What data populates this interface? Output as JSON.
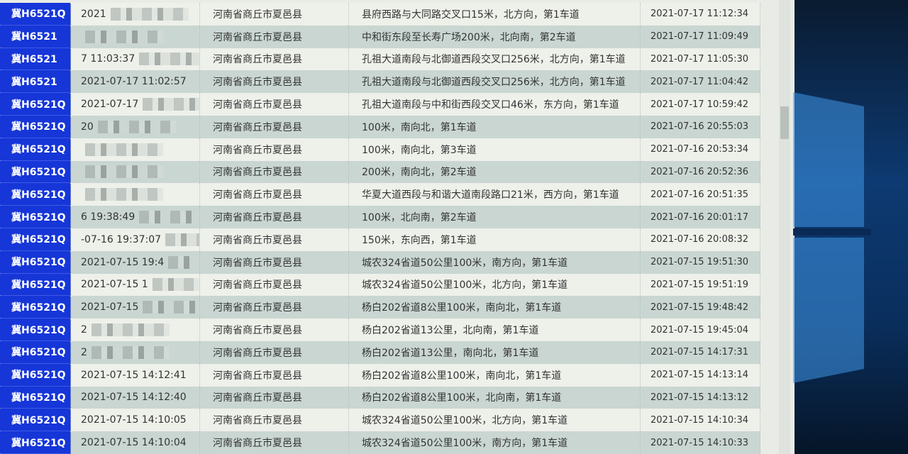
{
  "table": {
    "rows": [
      {
        "plate": "冀H6521Q",
        "time": "2021",
        "region": "河南省商丘市夏邑县",
        "location": "县府西路与大同路交叉口15米，北方向，第1车道",
        "time2": "2021-07-17 11:12:34"
      },
      {
        "plate": "冀H6521",
        "time": "",
        "region": "河南省商丘市夏邑县",
        "location": "中和街东段至长寿广场200米，北向南，第2车道",
        "time2": "2021-07-17 11:09:49"
      },
      {
        "plate": "冀H6521",
        "time": "7 11:03:37",
        "region": "河南省商丘市夏邑县",
        "location": "孔祖大道南段与北御道西段交叉口256米，北方向，第1车道",
        "time2": "2021-07-17 11:05:30"
      },
      {
        "plate": "冀H6521",
        "time": "2021-07-17 11:02:57",
        "region": "河南省商丘市夏邑县",
        "location": "孔祖大道南段与北御道西段交叉口256米，北方向，第1车道",
        "time2": "2021-07-17 11:04:42"
      },
      {
        "plate": "冀H6521Q",
        "time": "2021-07-17",
        "region": "河南省商丘市夏邑县",
        "location": "孔祖大道南段与中和街西段交叉口46米，东方向，第1车道",
        "time2": "2021-07-17 10:59:42"
      },
      {
        "plate": "冀H6521Q",
        "time": "20",
        "region": "河南省商丘市夏邑县",
        "location": "100米，南向北，第1车道",
        "time2": "2021-07-16 20:55:03"
      },
      {
        "plate": "冀H6521Q",
        "time": "",
        "region": "河南省商丘市夏邑县",
        "location": "100米，南向北，第3车道",
        "time2": "2021-07-16 20:53:34"
      },
      {
        "plate": "冀H6521Q",
        "time": "",
        "region": "河南省商丘市夏邑县",
        "location": "200米，南向北，第2车道",
        "time2": "2021-07-16 20:52:36"
      },
      {
        "plate": "冀H6521Q",
        "time": "",
        "region": "河南省商丘市夏邑县",
        "location": "华夏大道西段与和谐大道南段路口21米，西方向，第1车道",
        "time2": "2021-07-16 20:51:35"
      },
      {
        "plate": "冀H6521Q",
        "time": "6 19:38:49",
        "region": "河南省商丘市夏邑县",
        "location": "100米，北向南，第2车道",
        "time2": "2021-07-16 20:01:17"
      },
      {
        "plate": "冀H6521Q",
        "time": "-07-16 19:37:07",
        "region": "河南省商丘市夏邑县",
        "location": "150米，东向西，第1车道",
        "time2": "2021-07-16 20:08:32"
      },
      {
        "plate": "冀H6521Q",
        "time": "2021-07-15 19:4",
        "region": "河南省商丘市夏邑县",
        "location": "城农324省道50公里100米，南方向，第1车道",
        "time2": "2021-07-15 19:51:30"
      },
      {
        "plate": "冀H6521Q",
        "time": "2021-07-15 1",
        "region": "河南省商丘市夏邑县",
        "location": "城农324省道50公里100米，北方向，第1车道",
        "time2": "2021-07-15 19:51:19"
      },
      {
        "plate": "冀H6521Q",
        "time": "2021-07-15",
        "region": "河南省商丘市夏邑县",
        "location": "杨白202省道8公里100米，南向北，第1车道",
        "time2": "2021-07-15 19:48:42"
      },
      {
        "plate": "冀H6521Q",
        "time": "2",
        "region": "河南省商丘市夏邑县",
        "location": "杨白202省道13公里，北向南，第1车道",
        "time2": "2021-07-15 19:45:04"
      },
      {
        "plate": "冀H6521Q",
        "time": "2",
        "region": "河南省商丘市夏邑县",
        "location": "杨白202省道13公里，南向北，第1车道",
        "time2": "2021-07-15 14:17:31"
      },
      {
        "plate": "冀H6521Q",
        "time": "2021-07-15 14:12:41",
        "region": "河南省商丘市夏邑县",
        "location": "杨白202省道8公里100米，南向北，第1车道",
        "time2": "2021-07-15 14:13:14"
      },
      {
        "plate": "冀H6521Q",
        "time": "2021-07-15 14:12:40",
        "region": "河南省商丘市夏邑县",
        "location": "杨白202省道8公里100米，北向南，第1车道",
        "time2": "2021-07-15 14:13:12"
      },
      {
        "plate": "冀H6521Q",
        "time": "2021-07-15 14:10:05",
        "region": "河南省商丘市夏邑县",
        "location": "城农324省道50公里100米，北方向，第1车道",
        "time2": "2021-07-15 14:10:34"
      },
      {
        "plate": "冀H6521Q",
        "time": "2021-07-15 14:10:04",
        "region": "河南省商丘市夏邑县",
        "location": "城农324省道50公里100米，南方向，第1车道",
        "time2": "2021-07-15 14:10:33"
      }
    ]
  },
  "colors": {
    "plate_bg": "#1636d8",
    "row_alt": "#c9d6d2",
    "row": "#eef0ea"
  }
}
